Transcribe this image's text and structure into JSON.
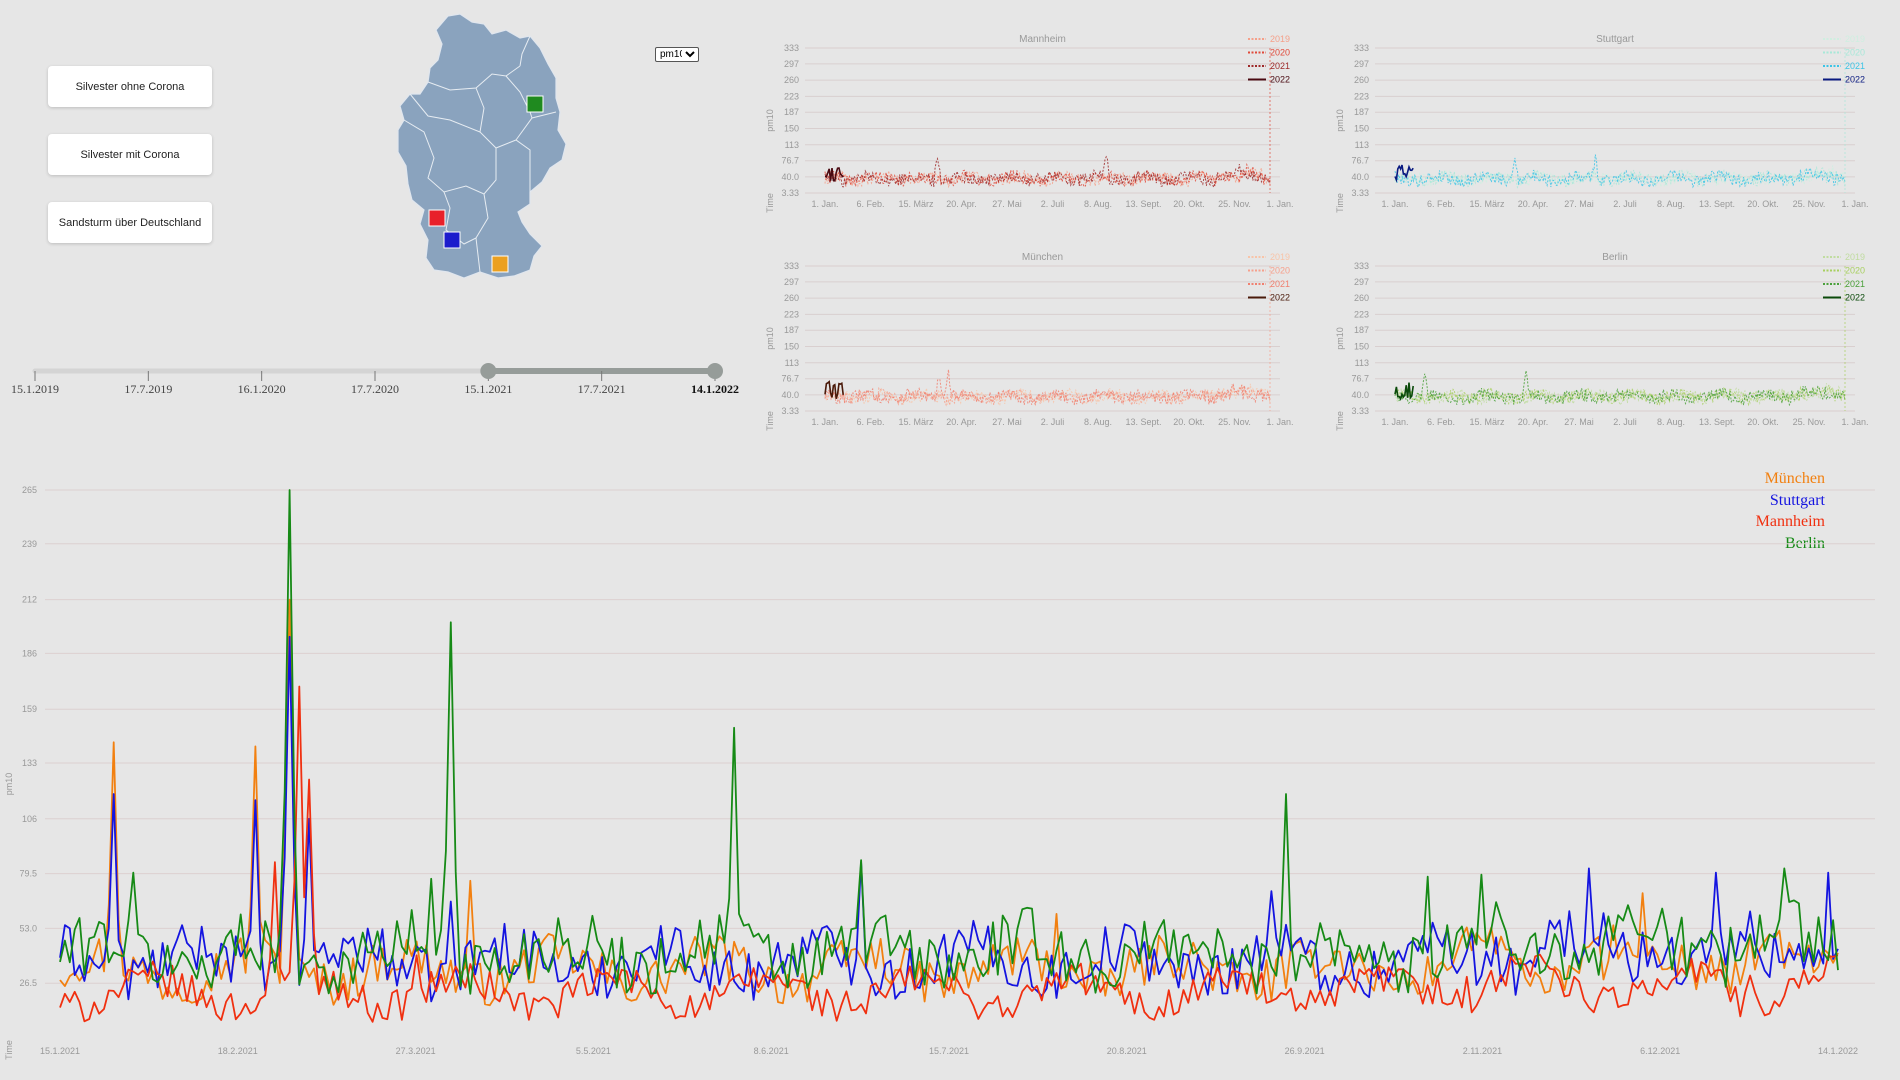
{
  "buttons": [
    {
      "label": "Silvester ohne Corona"
    },
    {
      "label": "Silvester mit Corona"
    },
    {
      "label": "Sandsturm über Deutschland"
    }
  ],
  "metric_select": {
    "selected": "pm10",
    "options": [
      "pm10"
    ]
  },
  "map": {
    "land_color": "#8aa3be",
    "markers": [
      {
        "city": "Berlin",
        "color": "#1f8a1f"
      },
      {
        "city": "Mannheim",
        "color": "#e8202a"
      },
      {
        "city": "Stuttgart",
        "color": "#1c1ccc"
      },
      {
        "city": "München",
        "color": "#eba020"
      }
    ]
  },
  "timeline": {
    "ticks": [
      "15.1.2019",
      "17.7.2019",
      "16.1.2020",
      "17.7.2020",
      "15.1.2021",
      "17.7.2021",
      "14.1.2022"
    ],
    "selected_start": "15.1.2021",
    "selected_end": "14.1.2022"
  },
  "chart_data": [
    {
      "type": "line",
      "title": "Mannheim",
      "xlabel": "Time",
      "ylabel": "pm10",
      "x_ticks": [
        "1. Jan.",
        "6. Feb.",
        "15. März",
        "20. Apr.",
        "27. Mai",
        "2. Juli",
        "8. Aug.",
        "13. Sept.",
        "20. Okt.",
        "25. Nov.",
        "1. Jan."
      ],
      "y_ticks": [
        "3.33",
        "40.0",
        "76.7",
        "113",
        "150",
        "187",
        "223",
        "260",
        "297",
        "333"
      ],
      "ylim": [
        3.33,
        333
      ],
      "legend": "top-right",
      "series": [
        {
          "name": "2019",
          "color": "#f5a08a",
          "dash": true
        },
        {
          "name": "2020",
          "color": "#e04a3a",
          "dash": true
        },
        {
          "name": "2021",
          "color": "#9e2a2a",
          "dash": true
        },
        {
          "name": "2022",
          "color": "#4a0a12",
          "dash": false
        }
      ]
    },
    {
      "type": "line",
      "title": "Stuttgart",
      "xlabel": "Time",
      "ylabel": "pm10",
      "x_ticks": [
        "1. Jan.",
        "6. Feb.",
        "15. März",
        "20. Apr.",
        "27. Mai",
        "2. Juli",
        "8. Aug.",
        "13. Sept.",
        "20. Okt.",
        "25. Nov.",
        "1. Jan."
      ],
      "y_ticks": [
        "3.33",
        "40.0",
        "76.7",
        "113",
        "150",
        "187",
        "223",
        "260",
        "297",
        "333"
      ],
      "ylim": [
        3.33,
        333
      ],
      "legend": "top-right",
      "series": [
        {
          "name": "2019",
          "color": "#cfeee0",
          "dash": true
        },
        {
          "name": "2020",
          "color": "#a8e8d8",
          "dash": true
        },
        {
          "name": "2021",
          "color": "#3cc4e6",
          "dash": true
        },
        {
          "name": "2022",
          "color": "#0a1a80",
          "dash": false
        }
      ]
    },
    {
      "type": "line",
      "title": "München",
      "xlabel": "Time",
      "ylabel": "pm10",
      "x_ticks": [
        "1. Jan.",
        "6. Feb.",
        "15. März",
        "20. Apr.",
        "27. Mai",
        "2. Juli",
        "8. Aug.",
        "13. Sept.",
        "20. Okt.",
        "25. Nov.",
        "1. Jan."
      ],
      "y_ticks": [
        "3.33",
        "40.0",
        "76.7",
        "113",
        "150",
        "187",
        "223",
        "260",
        "297",
        "333"
      ],
      "ylim": [
        3.33,
        333
      ],
      "legend": "top-right",
      "series": [
        {
          "name": "2019",
          "color": "#f8c4a8",
          "dash": true
        },
        {
          "name": "2020",
          "color": "#f6a08c",
          "dash": true
        },
        {
          "name": "2021",
          "color": "#f08070",
          "dash": true
        },
        {
          "name": "2022",
          "color": "#4a1a0a",
          "dash": false
        }
      ]
    },
    {
      "type": "line",
      "title": "Berlin",
      "xlabel": "Time",
      "ylabel": "pm10",
      "x_ticks": [
        "1. Jan.",
        "6. Feb.",
        "15. März",
        "20. Apr.",
        "27. Mai",
        "2. Juli",
        "8. Aug.",
        "13. Sept.",
        "20. Okt.",
        "25. Nov.",
        "1. Jan."
      ],
      "y_ticks": [
        "3.33",
        "40.0",
        "76.7",
        "113",
        "150",
        "187",
        "223",
        "260",
        "297",
        "333"
      ],
      "ylim": [
        3.33,
        333
      ],
      "legend": "top-right",
      "series": [
        {
          "name": "2019",
          "color": "#c0dca0",
          "dash": true
        },
        {
          "name": "2020",
          "color": "#a8d060",
          "dash": true
        },
        {
          "name": "2021",
          "color": "#4aa03a",
          "dash": true
        },
        {
          "name": "2022",
          "color": "#0a4a0a",
          "dash": false
        }
      ]
    },
    {
      "type": "line",
      "xlabel": "Time",
      "ylabel": "pm10",
      "x_ticks": [
        "15.1.2021",
        "18.2.2021",
        "27.3.2021",
        "5.5.2021",
        "8.6.2021",
        "15.7.2021",
        "20.8.2021",
        "26.9.2021",
        "2.11.2021",
        "6.12.2021",
        "14.1.2022"
      ],
      "y_ticks": [
        "26.5",
        "53.0",
        "79.5",
        "106",
        "133",
        "159",
        "186",
        "212",
        "239",
        "265"
      ],
      "ylim": [
        0,
        265
      ],
      "legend": "top-right",
      "series": [
        {
          "name": "München",
          "color": "#f28010",
          "peaks": [
            [
              0.03,
              143
            ],
            [
              0.11,
              141
            ],
            [
              0.13,
              212
            ],
            [
              0.23,
              76
            ],
            [
              0.56,
              60
            ],
            [
              0.89,
              70
            ]
          ]
        },
        {
          "name": "Stuttgart",
          "color": "#1414e0",
          "peaks": [
            [
              0.03,
              118
            ],
            [
              0.11,
              115
            ],
            [
              0.13,
              194
            ],
            [
              0.14,
              106
            ],
            [
              0.22,
              66
            ],
            [
              0.45,
              85
            ],
            [
              0.68,
              71
            ],
            [
              0.86,
              82
            ],
            [
              0.93,
              80
            ],
            [
              0.995,
              80
            ]
          ]
        },
        {
          "name": "Mannheim",
          "color": "#f03010",
          "peaks": [
            [
              0.12,
              85
            ],
            [
              0.135,
              170
            ],
            [
              0.14,
              125
            ],
            [
              0.2,
              40
            ]
          ]
        },
        {
          "name": "Berlin",
          "color": "#168a16",
          "peaks": [
            [
              0.04,
              80
            ],
            [
              0.13,
              265
            ],
            [
              0.21,
              77
            ],
            [
              0.22,
              201
            ],
            [
              0.38,
              150
            ],
            [
              0.45,
              86
            ],
            [
              0.69,
              118
            ],
            [
              0.77,
              78
            ],
            [
              0.8,
              79
            ],
            [
              0.97,
              82
            ]
          ]
        }
      ]
    }
  ]
}
